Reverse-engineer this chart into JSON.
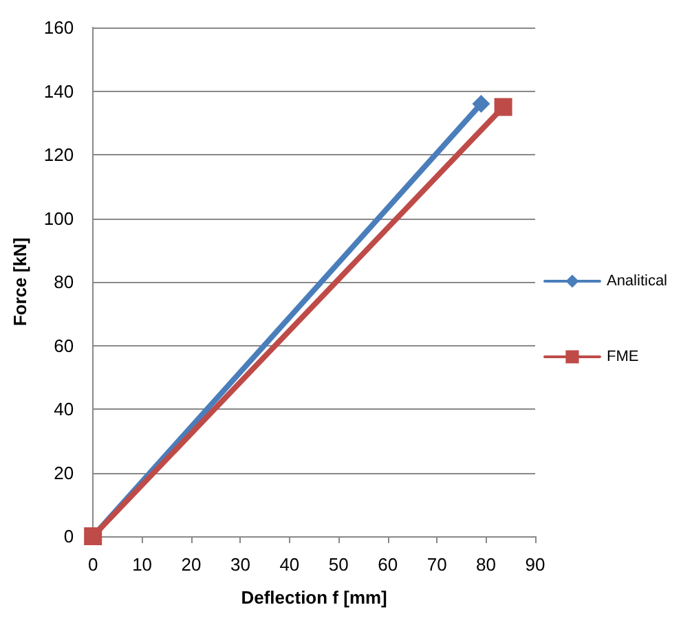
{
  "chart_data": {
    "type": "line",
    "xlabel": "Deflection f [mm]",
    "ylabel": "Force [kN]",
    "xlim": [
      0,
      90
    ],
    "xticks": [
      0,
      10,
      20,
      30,
      40,
      50,
      60,
      70,
      80,
      90
    ],
    "ylim": [
      0,
      160
    ],
    "yticks": [
      0,
      20,
      40,
      60,
      80,
      100,
      120,
      140,
      160
    ],
    "grid": "y",
    "legend": "right",
    "line_style": "solid",
    "series": [
      {
        "name": "Analitical",
        "color": "#4a7ebb",
        "x": [
          0,
          79
        ],
        "values": [
          0,
          136
        ],
        "marker": "diamond"
      },
      {
        "name": "FME",
        "color": "#be4b48",
        "x": [
          0,
          83.5
        ],
        "values": [
          0,
          135
        ],
        "marker": "square"
      }
    ]
  }
}
